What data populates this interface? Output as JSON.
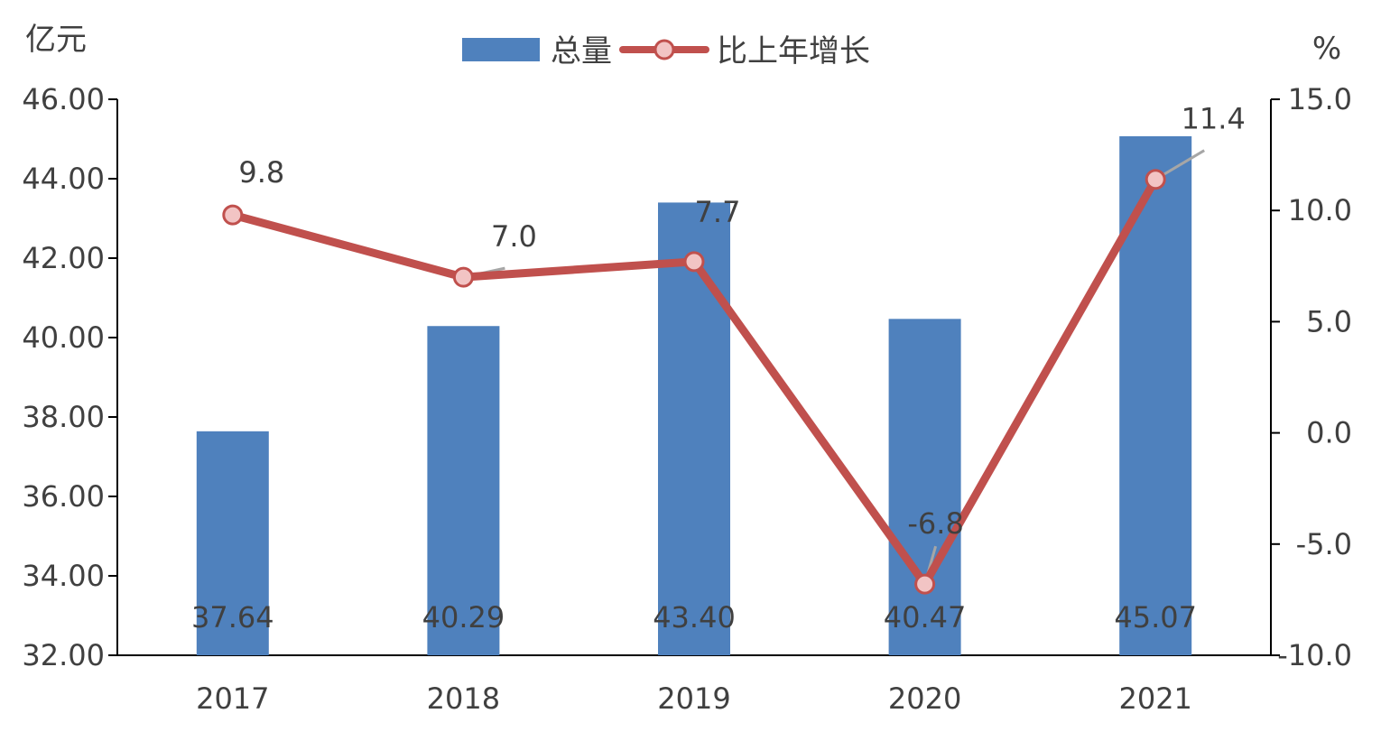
{
  "chart_data": {
    "type": "bar",
    "categories": [
      "2017",
      "2018",
      "2019",
      "2020",
      "2021"
    ],
    "y_left_unit": "亿元",
    "y_right_unit": "%",
    "y_left_ticks": [
      "32.00",
      "34.00",
      "36.00",
      "38.00",
      "40.00",
      "42.00",
      "44.00",
      "46.00"
    ],
    "y_right_ticks": [
      "-10.0",
      "-5.0",
      "0.0",
      "5.0",
      "10.0",
      "15.0"
    ],
    "ylim_left": [
      32,
      46
    ],
    "ylim_right": [
      -10,
      15
    ],
    "legend_position": "top-center",
    "grid": false,
    "series": [
      {
        "name": "总量",
        "type": "bar",
        "axis": "left",
        "color": "#4f81bd",
        "values": [
          37.64,
          40.29,
          43.4,
          40.47,
          45.07
        ],
        "labels": [
          "37.64",
          "40.29",
          "43.40",
          "40.47",
          "45.07"
        ]
      },
      {
        "name": "比上年增长",
        "type": "line",
        "axis": "right",
        "color": "#c0504d",
        "marker_fill": "#f2c4c4",
        "values": [
          9.8,
          7.0,
          7.7,
          -6.8,
          11.4
        ],
        "labels": [
          "9.8",
          "7.0",
          "7.7",
          "-6.8",
          "11.4"
        ]
      }
    ]
  }
}
